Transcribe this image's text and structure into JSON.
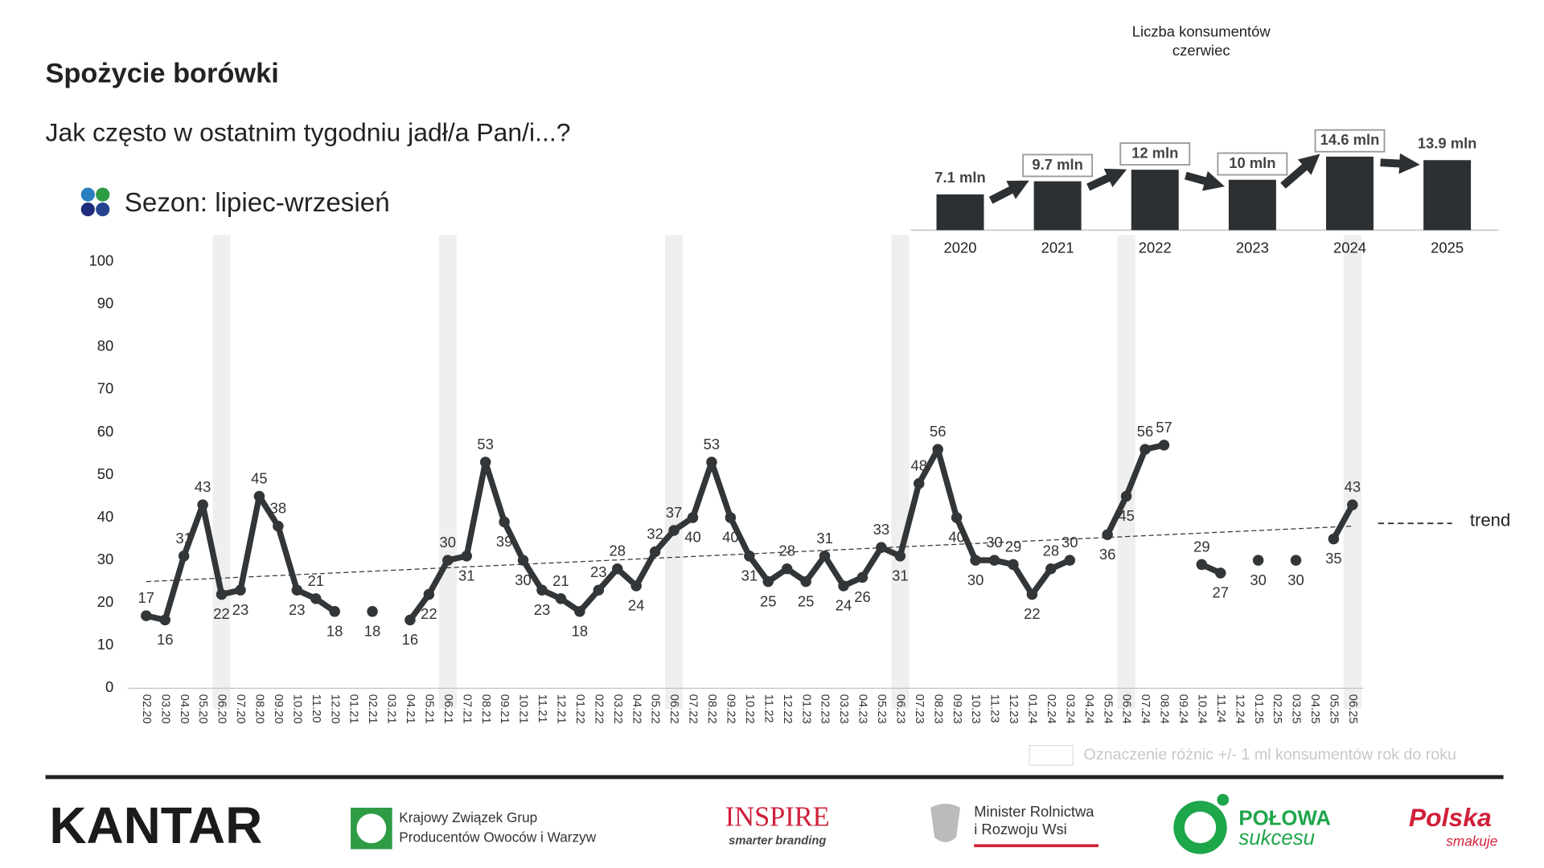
{
  "header": {
    "title": "Spożycie borówki",
    "subtitle": "Jak często w ostatnim tygodniu jadł/a Pan/i...?"
  },
  "chart_data": [
    {
      "type": "line",
      "categories": [
        "02.20",
        "03.20",
        "04.20",
        "05.20",
        "06.20",
        "07.20",
        "08.20",
        "09.20",
        "10.20",
        "11.20",
        "12.20",
        "01.21",
        "02.21",
        "03.21",
        "04.21",
        "05.21",
        "06.21",
        "07.21",
        "08.21",
        "09.21",
        "10.21",
        "11.21",
        "12.21",
        "01.22",
        "02.22",
        "03.22",
        "04.22",
        "05.22",
        "06.22",
        "07.22",
        "08.22",
        "09.22",
        "10.22",
        "11.22",
        "12.22",
        "01.23",
        "02.23",
        "03.23",
        "04.23",
        "05.23",
        "06.23",
        "07.23",
        "08.23",
        "09.23",
        "10.23",
        "11.23",
        "12.23",
        "01.24",
        "02.24",
        "03.24",
        "04.24",
        "05.24",
        "06.24",
        "07.24",
        "08.24",
        "09.24",
        "10.24",
        "11.24",
        "12.24",
        "01.25",
        "02.25",
        "03.25",
        "04.25",
        "05.25",
        "06.25"
      ],
      "series": [
        {
          "name": "Sezon: lipiec-wrzesień",
          "color": "#323638",
          "values": [
            17,
            16,
            31,
            43,
            22,
            23,
            45,
            38,
            23,
            21,
            18,
            null,
            18,
            null,
            16,
            22,
            30,
            31,
            53,
            39,
            30,
            23,
            21,
            18,
            23,
            28,
            24,
            32,
            37,
            40,
            53,
            40,
            31,
            25,
            28,
            25,
            31,
            24,
            26,
            33,
            31,
            48,
            56,
            40,
            30,
            30,
            29,
            22,
            28,
            30,
            null,
            36,
            45,
            56,
            57,
            null,
            29,
            27,
            null,
            30,
            null,
            30,
            null,
            35,
            43
          ]
        }
      ],
      "trend": {
        "name": "trend",
        "values": [
          25,
          38
        ]
      },
      "highlight": {
        "label": "Oznaczenie różnic +/- 1 ml konsumentów rok do roku",
        "categories": [
          "06.20",
          "06.21",
          "06.22",
          "06.23",
          "06.24",
          "06.25"
        ]
      },
      "ylim": [
        0,
        100
      ],
      "yticks": [
        0,
        10,
        20,
        30,
        40,
        50,
        60,
        70,
        80,
        90,
        100
      ],
      "grid": false
    },
    {
      "type": "bar",
      "title": [
        "Liczba konsumentów",
        "czerwiec"
      ],
      "categories": [
        "2020",
        "2021",
        "2022",
        "2023",
        "2024",
        "2025"
      ],
      "values": [
        7.1,
        9.7,
        12,
        10,
        14.6,
        13.9
      ],
      "value_labels": [
        "7.1 mln",
        "9.7 mln",
        "12 mln",
        "10 mln",
        "14.6 mln",
        "13.9 mln"
      ],
      "boxed": [
        false,
        true,
        true,
        true,
        true,
        false
      ],
      "color": "#2d3033"
    }
  ],
  "footer": {
    "kantar": "KANTAR",
    "kzgpow": [
      "Krajowy Związek Grup",
      "Producentów Owoców i Warzyw"
    ],
    "inspire": [
      "INSPIRE",
      "smarter branding"
    ],
    "minister": [
      "Minister Rolnictwa",
      "i Rozwoju Wsi"
    ],
    "polowa": [
      "POŁOWA",
      "sukcesu"
    ],
    "polska": [
      "Polska",
      "smakuje"
    ]
  }
}
